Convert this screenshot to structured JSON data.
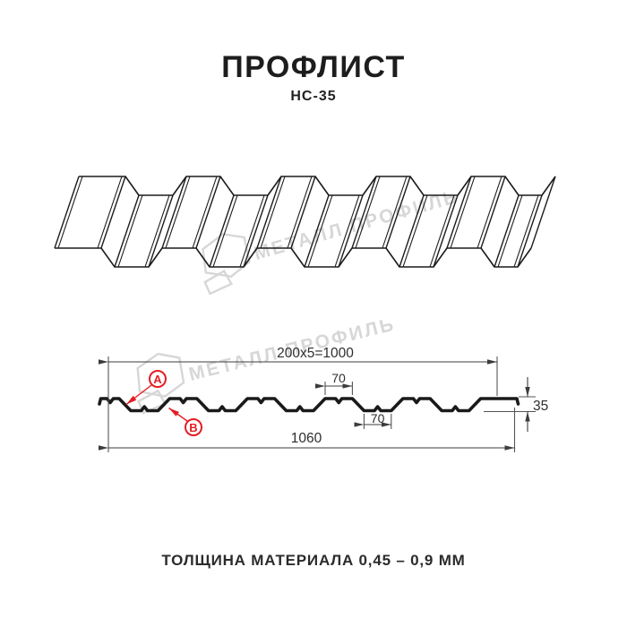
{
  "header": {
    "title": "ПРОФЛИСТ",
    "model": "НС-35"
  },
  "watermark": {
    "text": "МЕТАЛЛ ПРОФИЛЬ",
    "color": "#d7d7d7"
  },
  "diagram": {
    "dimensions": {
      "coverage_width": "200x5=1000",
      "rib_top_width": "70",
      "rib_bottom_width": "70",
      "overall_width": "1060",
      "profile_height": "35"
    },
    "markers": [
      {
        "label": "А"
      },
      {
        "label": "В"
      }
    ],
    "colors": {
      "marker_red": "#e31e24",
      "line_dark": "#1a1a1a",
      "dim_gray": "#3c3c3c"
    }
  },
  "footer": {
    "thickness_note": "ТОЛЩИНА МАТЕРИАЛА 0,45 – 0,9 ММ"
  }
}
